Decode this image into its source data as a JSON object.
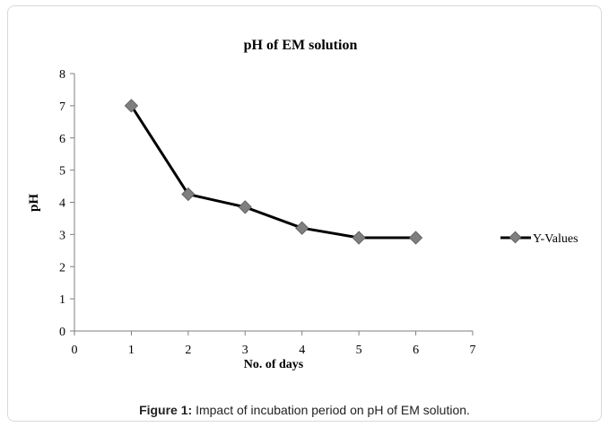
{
  "chart_data": {
    "type": "line",
    "title": "pH of EM solution",
    "xlabel": "No. of days",
    "ylabel": "pH",
    "xlim": [
      0,
      7
    ],
    "ylim": [
      0,
      8
    ],
    "xticks": [
      0,
      1,
      2,
      3,
      4,
      5,
      6,
      7
    ],
    "yticks": [
      0,
      1,
      2,
      3,
      4,
      5,
      6,
      7,
      8
    ],
    "grid": false,
    "legend_position": "right",
    "series": [
      {
        "name": "Y-Values",
        "color": "#000000",
        "marker_color": "#7f7f7f",
        "x": [
          1,
          2,
          3,
          4,
          5,
          6
        ],
        "y": [
          7.0,
          4.25,
          3.85,
          3.2,
          2.9,
          2.9
        ]
      }
    ]
  },
  "caption": {
    "label": "Figure 1:",
    "text": " Impact of incubation period on pH of EM solution."
  }
}
